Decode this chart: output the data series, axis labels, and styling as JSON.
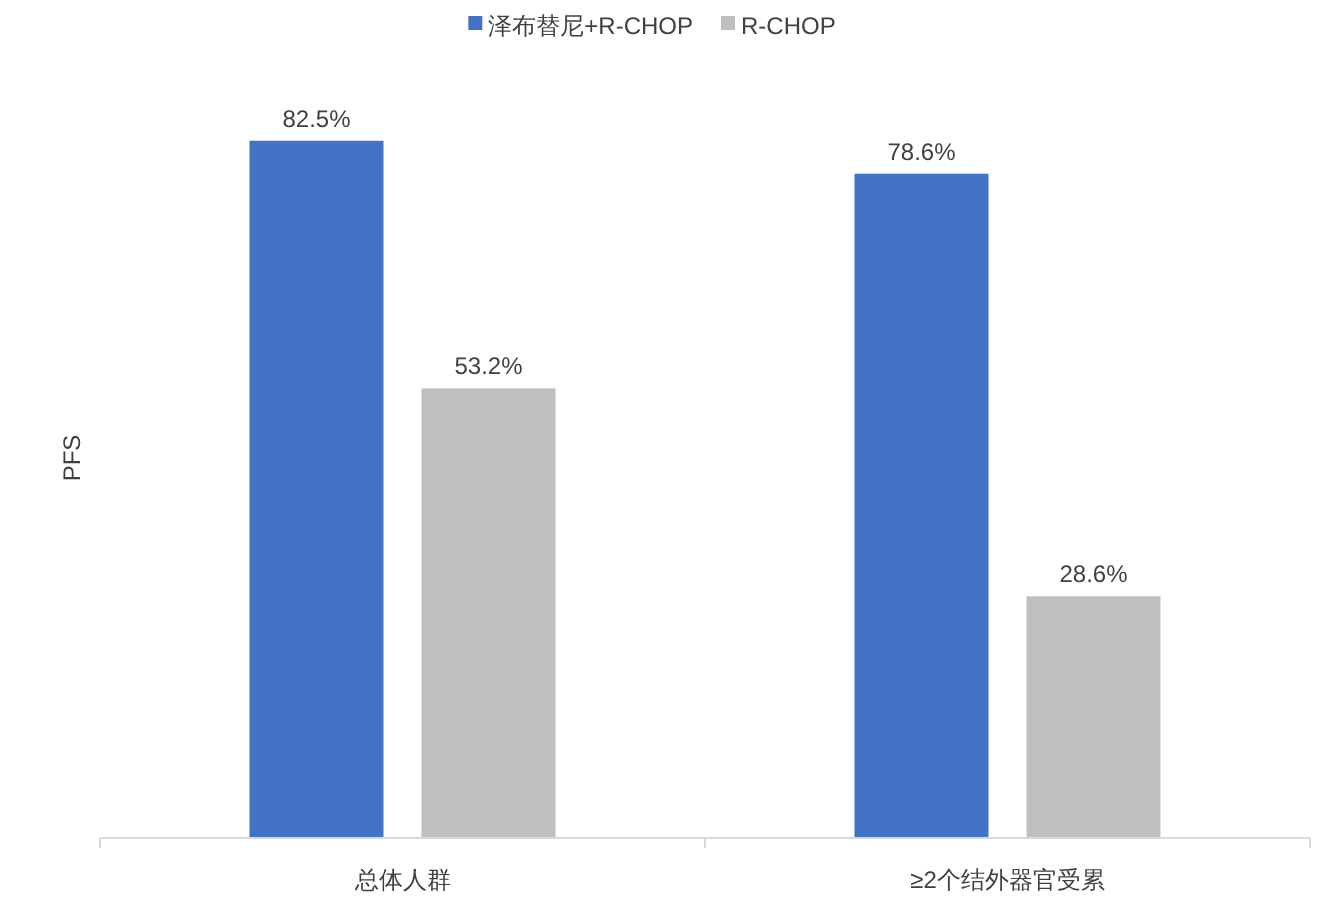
{
  "chart_data": {
    "type": "bar",
    "ylabel": "PFS",
    "categories": [
      "总体人群",
      "≥2个结外器官受累"
    ],
    "series": [
      {
        "name": "泽布替尼+R-CHOP",
        "color": "#4472c4",
        "values": [
          82.5,
          78.6
        ],
        "value_labels": [
          "82.5%",
          "78.6%"
        ]
      },
      {
        "name": "R-CHOP",
        "color": "#bfbfbf",
        "values": [
          53.2,
          28.6
        ],
        "value_labels": [
          "53.2%",
          "28.6%"
        ]
      }
    ],
    "legend": "top"
  }
}
